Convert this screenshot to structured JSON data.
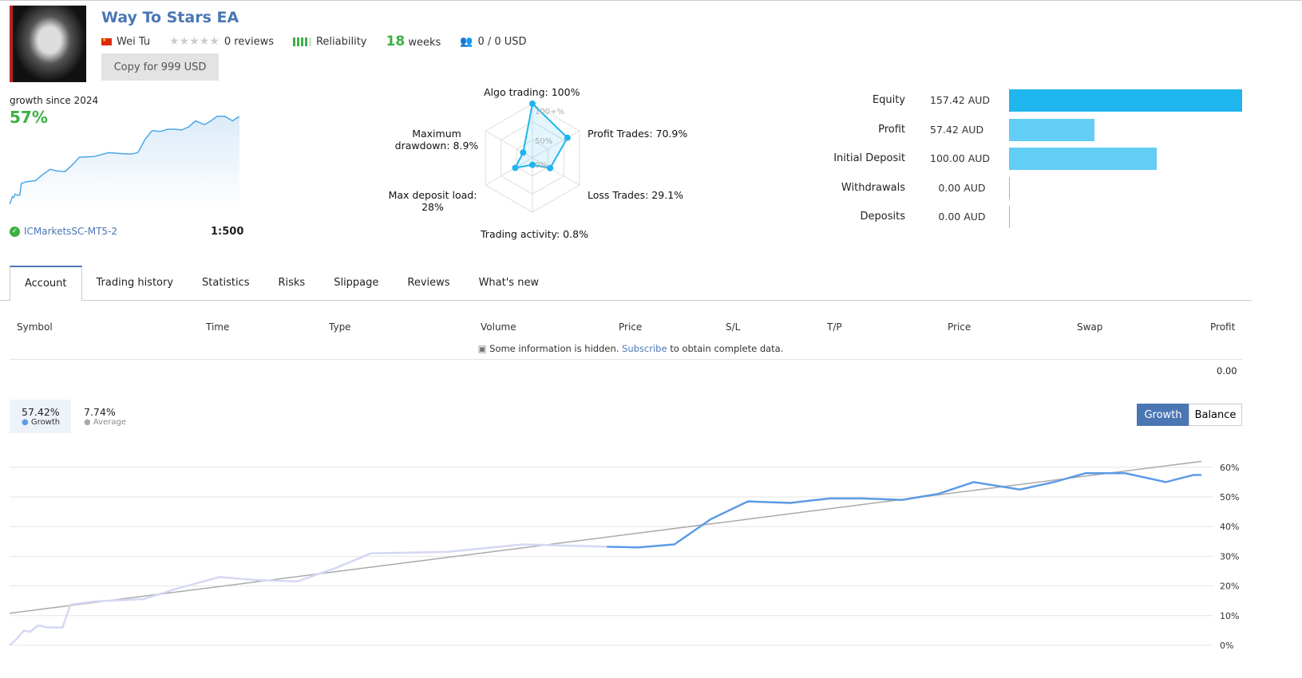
{
  "header": {
    "title": "Way To Stars EA",
    "author": "Wei Tu",
    "reviews": "0 reviews",
    "reliability": "Reliability",
    "weeks_num": "18",
    "weeks_label": "weeks",
    "subscribers": "0 / 0 USD",
    "copy_button": "Copy for 999 USD"
  },
  "summary": {
    "growth_label": "growth since 2024",
    "growth_value": "57%",
    "broker": "ICMarketsSC-MT5-2",
    "leverage": "1:500"
  },
  "radar": {
    "labels": [
      "Algo trading: 100%",
      "Profit Trades: 70.9%",
      "Loss Trades: 29.1%",
      "Trading activity: 0.8%",
      "Max deposit load: 28%",
      "Maximum drawdown: 8.9%"
    ],
    "values": [
      100,
      70.9,
      29.1,
      0.8,
      28,
      8.9
    ],
    "scale": [
      "100+%",
      "50%",
      "0%"
    ],
    "color": "#1fb5ee"
  },
  "stats": [
    {
      "label": "Equity",
      "value": "157.42 AUD",
      "amount": 157.42,
      "color": "#1fb5ee"
    },
    {
      "label": "Profit",
      "value": "57.42 AUD",
      "amount": 57.42,
      "color": "#62cdf5"
    },
    {
      "label": "Initial Deposit",
      "value": "100.00 AUD",
      "amount": 100,
      "color": "#62cdf5"
    },
    {
      "label": "Withdrawals",
      "value": "0.00 AUD",
      "amount": 0,
      "color": "#62cdf5"
    },
    {
      "label": "Deposits",
      "value": "0.00 AUD",
      "amount": 0,
      "color": "#62cdf5"
    }
  ],
  "tabs": [
    "Account",
    "Trading history",
    "Statistics",
    "Risks",
    "Slippage",
    "Reviews",
    "What's new"
  ],
  "table": {
    "headers": [
      "Symbol",
      "Time",
      "Type",
      "Volume",
      "Price",
      "S/L",
      "T/P",
      "Price",
      "Swap",
      "Profit"
    ],
    "hidden_pre": "Some information is hidden.",
    "hidden_link": "Subscribe",
    "hidden_post": "to obtain complete data.",
    "total": "0.00"
  },
  "legend": {
    "growth_value": "57.42%",
    "growth_label": "Growth",
    "average_value": "7.74%",
    "average_label": "Average"
  },
  "buttons": {
    "growth": "Growth",
    "balance": "Balance"
  },
  "chart_data": {
    "type": "line",
    "x_unit": "weeks",
    "ylim": [
      0,
      60
    ],
    "yticks": [
      "0%",
      "10%",
      "20%",
      "30%",
      "40%",
      "50%",
      "60%"
    ],
    "series": [
      {
        "name": "Growth",
        "color": "#5b9be6",
        "x": [
          0,
          0.1,
          0.22,
          0.31,
          0.43,
          0.58,
          0.8,
          0.92,
          1.3,
          2.03,
          2.51,
          3.17,
          3.71,
          4.34,
          4.92,
          5.46,
          6.61,
          7.75,
          9.02,
          9.5,
          10.04,
          10.59,
          11.15,
          11.79,
          12.39,
          12.88,
          13.48,
          14.02,
          14.56,
          15.26,
          15.77,
          16.25,
          16.85,
          17.46,
          17.88,
          18
        ],
        "y": [
          0,
          2,
          5,
          4.5,
          6.7,
          6,
          6,
          13.7,
          14.8,
          15.6,
          19,
          23,
          22,
          21.5,
          26,
          31,
          31.5,
          34,
          33.2,
          33,
          34,
          42.5,
          48.5,
          48,
          49.5,
          49.5,
          49,
          51,
          55,
          52.5,
          55,
          58,
          58,
          55,
          57.4,
          57.4
        ]
      },
      {
        "name": "Average",
        "color": "#aaaaaa",
        "x": [
          0,
          18
        ],
        "y": [
          10.8,
          62
        ]
      }
    ]
  }
}
